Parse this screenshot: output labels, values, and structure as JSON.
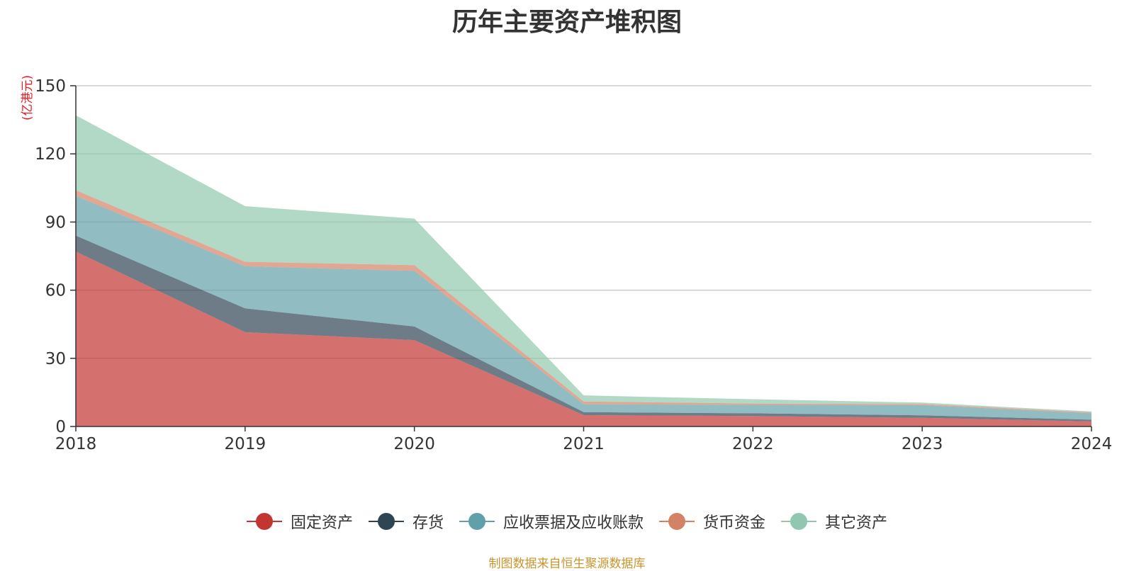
{
  "chart_data": {
    "type": "area",
    "stacked": true,
    "title": "历年主要资产堆积图",
    "y_unit_label": "(亿港元)",
    "x": [
      "2018",
      "2019",
      "2020",
      "2021",
      "2022",
      "2023",
      "2024"
    ],
    "ylim": [
      0,
      150
    ],
    "yticks": [
      0,
      30,
      60,
      90,
      120,
      150
    ],
    "grid": true,
    "legend_position": "bottom",
    "series": [
      {
        "name": "固定资产",
        "color": "#c23531",
        "values": [
          77,
          41.5,
          38,
          5,
          4.6,
          3.8,
          2.2
        ]
      },
      {
        "name": "存货",
        "color": "#2f4554",
        "values": [
          7,
          10.5,
          6,
          1.3,
          1.2,
          1.1,
          0.8
        ]
      },
      {
        "name": "应收票据及应收账款",
        "color": "#61a0a8",
        "values": [
          17.5,
          18.5,
          24.5,
          3.5,
          3.7,
          4.5,
          2.8
        ]
      },
      {
        "name": "货币资金",
        "color": "#d48265",
        "values": [
          2.5,
          2,
          2.5,
          1.2,
          0.6,
          0.5,
          0.4
        ]
      },
      {
        "name": "其它资产",
        "color": "#91c7ae",
        "values": [
          33,
          24.5,
          20.5,
          2.7,
          1.9,
          0.6,
          0.4
        ]
      }
    ]
  },
  "footer": {
    "source": "制图数据来自恒生聚源数据库"
  }
}
